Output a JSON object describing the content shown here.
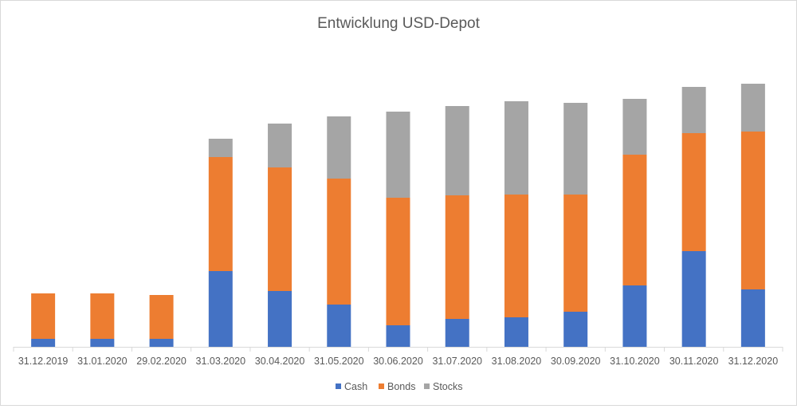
{
  "chart_data": {
    "type": "bar",
    "stacked": true,
    "title": "Entwicklung USD-Depot",
    "xlabel": "",
    "ylabel": "",
    "y_axis_visible": false,
    "grid": false,
    "legend_position": "bottom",
    "ylim": [
      0,
      340
    ],
    "categories": [
      "31.12.2019",
      "31.01.2020",
      "29.02.2020",
      "31.03.2020",
      "30.04.2020",
      "31.05.2020",
      "30.06.2020",
      "31.07.2020",
      "31.08.2020",
      "30.09.2020",
      "31.10.2020",
      "30.11.2020",
      "31.12.2020"
    ],
    "series": [
      {
        "name": "Cash",
        "color": "#4472C4",
        "values": [
          10,
          10,
          10,
          95,
          70,
          53,
          27,
          35,
          37,
          44,
          77,
          120,
          72
        ]
      },
      {
        "name": "Bonds",
        "color": "#ED7D31",
        "values": [
          57,
          57,
          55,
          143,
          155,
          158,
          160,
          155,
          154,
          147,
          164,
          148,
          198
        ]
      },
      {
        "name": "Stocks",
        "color": "#A5A5A5",
        "values": [
          0,
          0,
          0,
          23,
          55,
          78,
          108,
          112,
          117,
          115,
          70,
          58,
          60
        ]
      }
    ]
  }
}
